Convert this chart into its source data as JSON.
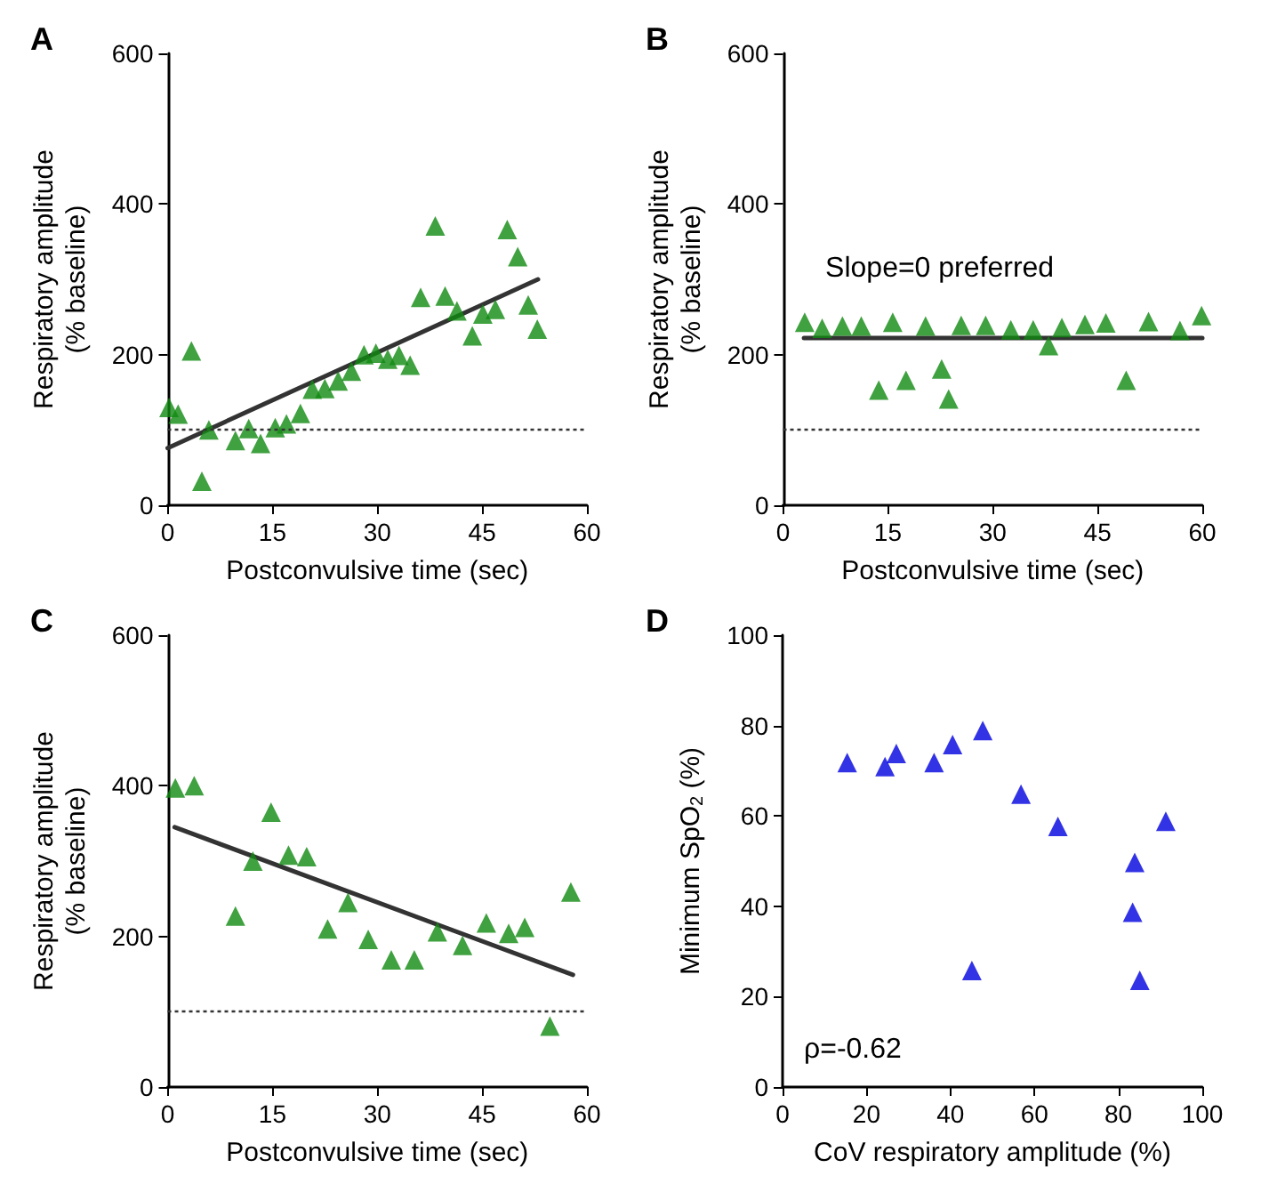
{
  "chart_data": [
    {
      "type": "scatter",
      "title": "A",
      "xlabel": "Postconvulsive time (sec)",
      "ylabel": "Respiratory amplitude\n(% baseline)",
      "xlim": [
        0,
        60
      ],
      "xticks": [
        0,
        15,
        30,
        45,
        60
      ],
      "ylim": [
        0,
        600
      ],
      "yticks": [
        0,
        200,
        400,
        600
      ],
      "marker": "triangle",
      "series": [
        {
          "type": "scatter",
          "color": "#108a10",
          "x": [
            0.2,
            1.5,
            3.4,
            4.9,
            5.9,
            9.7,
            11.6,
            13.3,
            15.4,
            17.0,
            19.0,
            20.7,
            22.5,
            24.4,
            26.3,
            28.1,
            29.8,
            31.5,
            33.1,
            34.7,
            36.2,
            38.3,
            39.7,
            41.4,
            43.6,
            45.1,
            46.9,
            48.6,
            50.1,
            51.6,
            52.9
          ],
          "values": [
            130,
            121,
            205,
            32,
            100,
            86,
            102,
            82,
            103,
            108,
            122,
            154,
            155,
            165,
            178,
            200,
            202,
            194,
            199,
            186,
            276,
            371,
            278,
            258,
            225,
            254,
            260,
            366,
            330,
            266,
            234
          ]
        },
        {
          "type": "line",
          "color": "#333333",
          "marker": "none",
          "x": [
            0,
            53
          ],
          "values": [
            76,
            300
          ]
        }
      ],
      "ref_lines": [
        {
          "axis": "y",
          "value": 100,
          "label": null,
          "color": "#333333",
          "line_style": "dotted"
        }
      ]
    },
    {
      "type": "scatter",
      "title": "B",
      "xlabel": "Postconvulsive time (sec)",
      "ylabel": "Respiratory amplitude\n(% baseline)",
      "xlim": [
        0,
        60
      ],
      "xticks": [
        0,
        15,
        30,
        45,
        60
      ],
      "ylim": [
        0,
        600
      ],
      "yticks": [
        0,
        200,
        400,
        600
      ],
      "marker": "triangle",
      "series": [
        {
          "type": "scatter",
          "color": "#108a10",
          "x": [
            3.1,
            5.6,
            8.5,
            11.2,
            13.7,
            15.7,
            17.6,
            20.4,
            22.7,
            23.7,
            25.5,
            29.0,
            32.6,
            35.8,
            38.0,
            39.9,
            43.2,
            46.2,
            49.1,
            52.3,
            56.8,
            59.9
          ],
          "values": [
            243,
            235,
            238,
            238,
            153,
            243,
            166,
            238,
            181,
            141,
            239,
            239,
            233,
            233,
            212,
            236,
            240,
            242,
            166,
            244,
            232,
            252
          ]
        },
        {
          "type": "line",
          "name": "Slope=0 preferred",
          "color": "#333333",
          "marker": "none",
          "x": [
            3,
            60
          ],
          "values": [
            222,
            222
          ]
        }
      ],
      "ref_lines": [
        {
          "axis": "y",
          "value": 100,
          "label": null,
          "color": "#333333",
          "line_style": "dotted"
        }
      ]
    },
    {
      "type": "scatter",
      "title": "C",
      "xlabel": "Postconvulsive time (sec)",
      "ylabel": "Respiratory amplitude\n(% baseline)",
      "xlim": [
        0,
        60
      ],
      "xticks": [
        0,
        15,
        30,
        45,
        60
      ],
      "ylim": [
        0,
        600
      ],
      "yticks": [
        0,
        200,
        400,
        600
      ],
      "marker": "triangle",
      "series": [
        {
          "type": "scatter",
          "color": "#108a10",
          "x": [
            1.1,
            3.8,
            9.7,
            12.2,
            14.8,
            17.3,
            19.9,
            22.9,
            25.8,
            28.7,
            32.0,
            35.3,
            38.6,
            42.2,
            45.6,
            48.8,
            51.1,
            54.7,
            57.7
          ],
          "values": [
            397,
            400,
            227,
            300,
            365,
            308,
            306,
            210,
            245,
            196,
            169,
            169,
            206,
            188,
            218,
            204,
            212,
            81,
            259
          ]
        },
        {
          "type": "line",
          "color": "#333333",
          "marker": "none",
          "x": [
            1,
            58
          ],
          "values": [
            345,
            149
          ]
        }
      ],
      "ref_lines": [
        {
          "axis": "y",
          "value": 100,
          "label": null,
          "color": "#333333",
          "line_style": "dotted"
        }
      ]
    },
    {
      "type": "scatter",
      "title": "D",
      "xlabel": "CoV respiratory amplitude (%)",
      "ylabel": "Minimum SpO$_{2}$ (%)",
      "xlim": [
        0,
        100
      ],
      "xticks": [
        0,
        20,
        40,
        60,
        80,
        100
      ],
      "ylim": [
        0,
        100
      ],
      "yticks": [
        0,
        20,
        40,
        60,
        80,
        100
      ],
      "marker": "triangle",
      "series": [
        {
          "type": "scatter",
          "color": "#0000e0",
          "x": [
            15.4,
            24.4,
            27.1,
            36.1,
            40.5,
            47.7,
            45.1,
            56.8,
            65.6,
            83.9,
            83.4,
            85.1,
            91.3
          ],
          "values": [
            71.8,
            70.9,
            73.8,
            71.8,
            75.8,
            78.9,
            25.8,
            64.8,
            57.7,
            49.7,
            38.7,
            23.6,
            58.8
          ]
        }
      ],
      "annotations": [
        "ρ=-0.62"
      ]
    }
  ]
}
